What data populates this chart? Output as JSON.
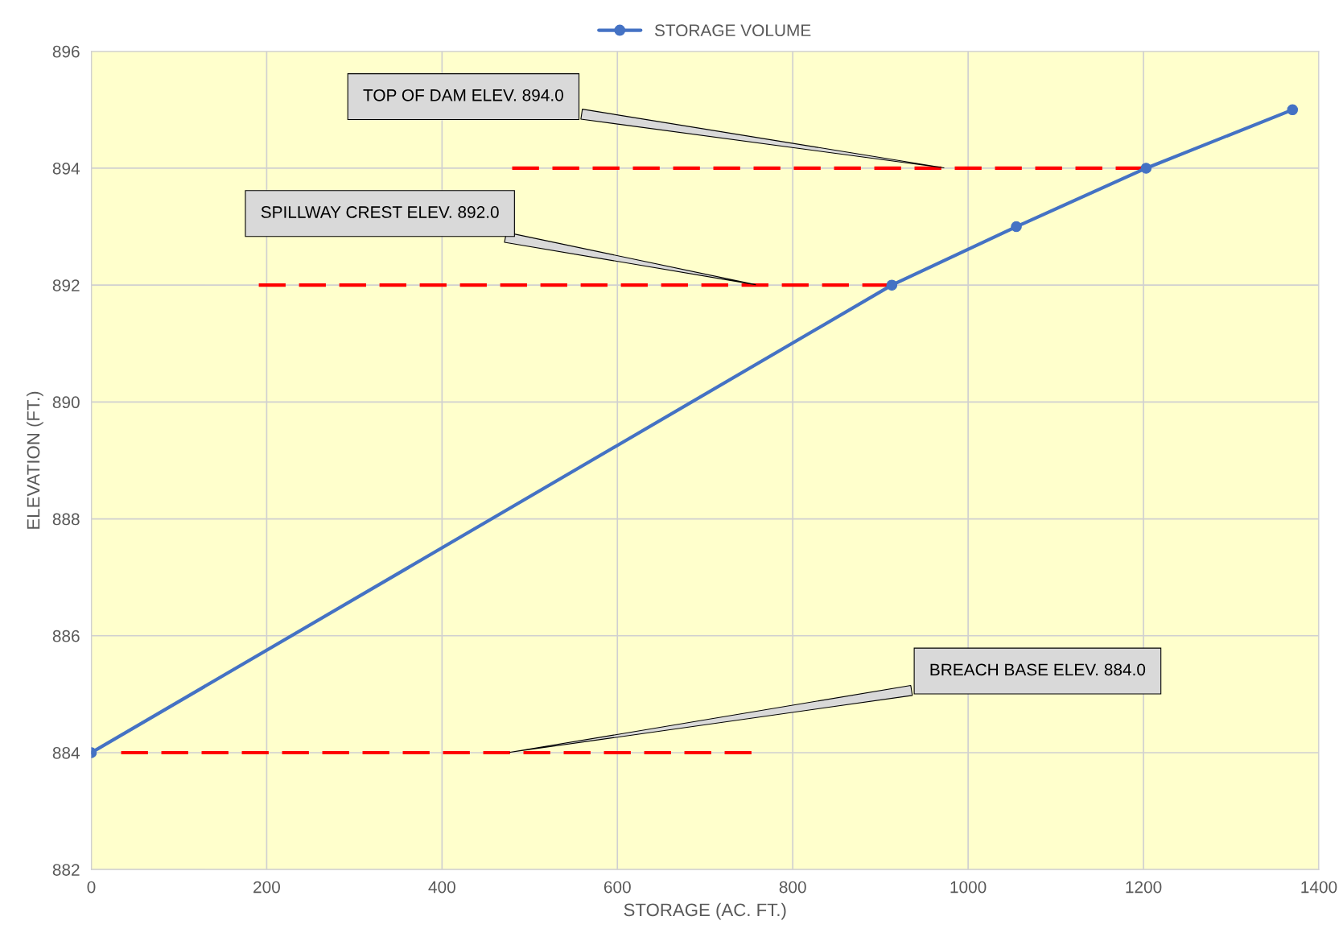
{
  "chart_data": {
    "type": "line",
    "xlabel": "STORAGE (AC. FT.)",
    "ylabel": "ELEVATION (FT.)",
    "series": [
      {
        "name": "STORAGE VOLUME",
        "color": "#4472c4",
        "x": [
          0,
          913,
          1055,
          1203,
          1370
        ],
        "values": [
          884,
          892,
          893,
          894,
          895
        ],
        "marker": "circle",
        "line_style": "solid"
      },
      {
        "color": "#ff0000",
        "x": [
          480,
          1203
        ],
        "values": [
          894,
          894
        ],
        "marker": "none",
        "line_style": "dashed"
      },
      {
        "color": "#ff0000",
        "x": [
          191,
          913
        ],
        "values": [
          892,
          892
        ],
        "marker": "none",
        "line_style": "dashed"
      },
      {
        "color": "#ff0000",
        "x": [
          34,
          753
        ],
        "values": [
          884,
          884
        ],
        "marker": "none",
        "line_style": "dashed"
      }
    ],
    "annotations": [
      {
        "text": "TOP OF DAM ELEV. 894.0",
        "x": 975,
        "y": 894
      },
      {
        "text": "SPILLWAY CREST ELEV. 892.0",
        "x": 760,
        "y": 892
      },
      {
        "text": "BREACH BASE ELEV. 884.0",
        "x": 475,
        "y": 884
      }
    ],
    "xlim": [
      0,
      1400
    ],
    "xticks": [
      0,
      200,
      400,
      600,
      800,
      1000,
      1200,
      1400
    ],
    "ylim": [
      882,
      896
    ],
    "yticks": [
      882,
      884,
      886,
      888,
      890,
      892,
      894,
      896
    ],
    "grid": true,
    "legend": "top"
  }
}
